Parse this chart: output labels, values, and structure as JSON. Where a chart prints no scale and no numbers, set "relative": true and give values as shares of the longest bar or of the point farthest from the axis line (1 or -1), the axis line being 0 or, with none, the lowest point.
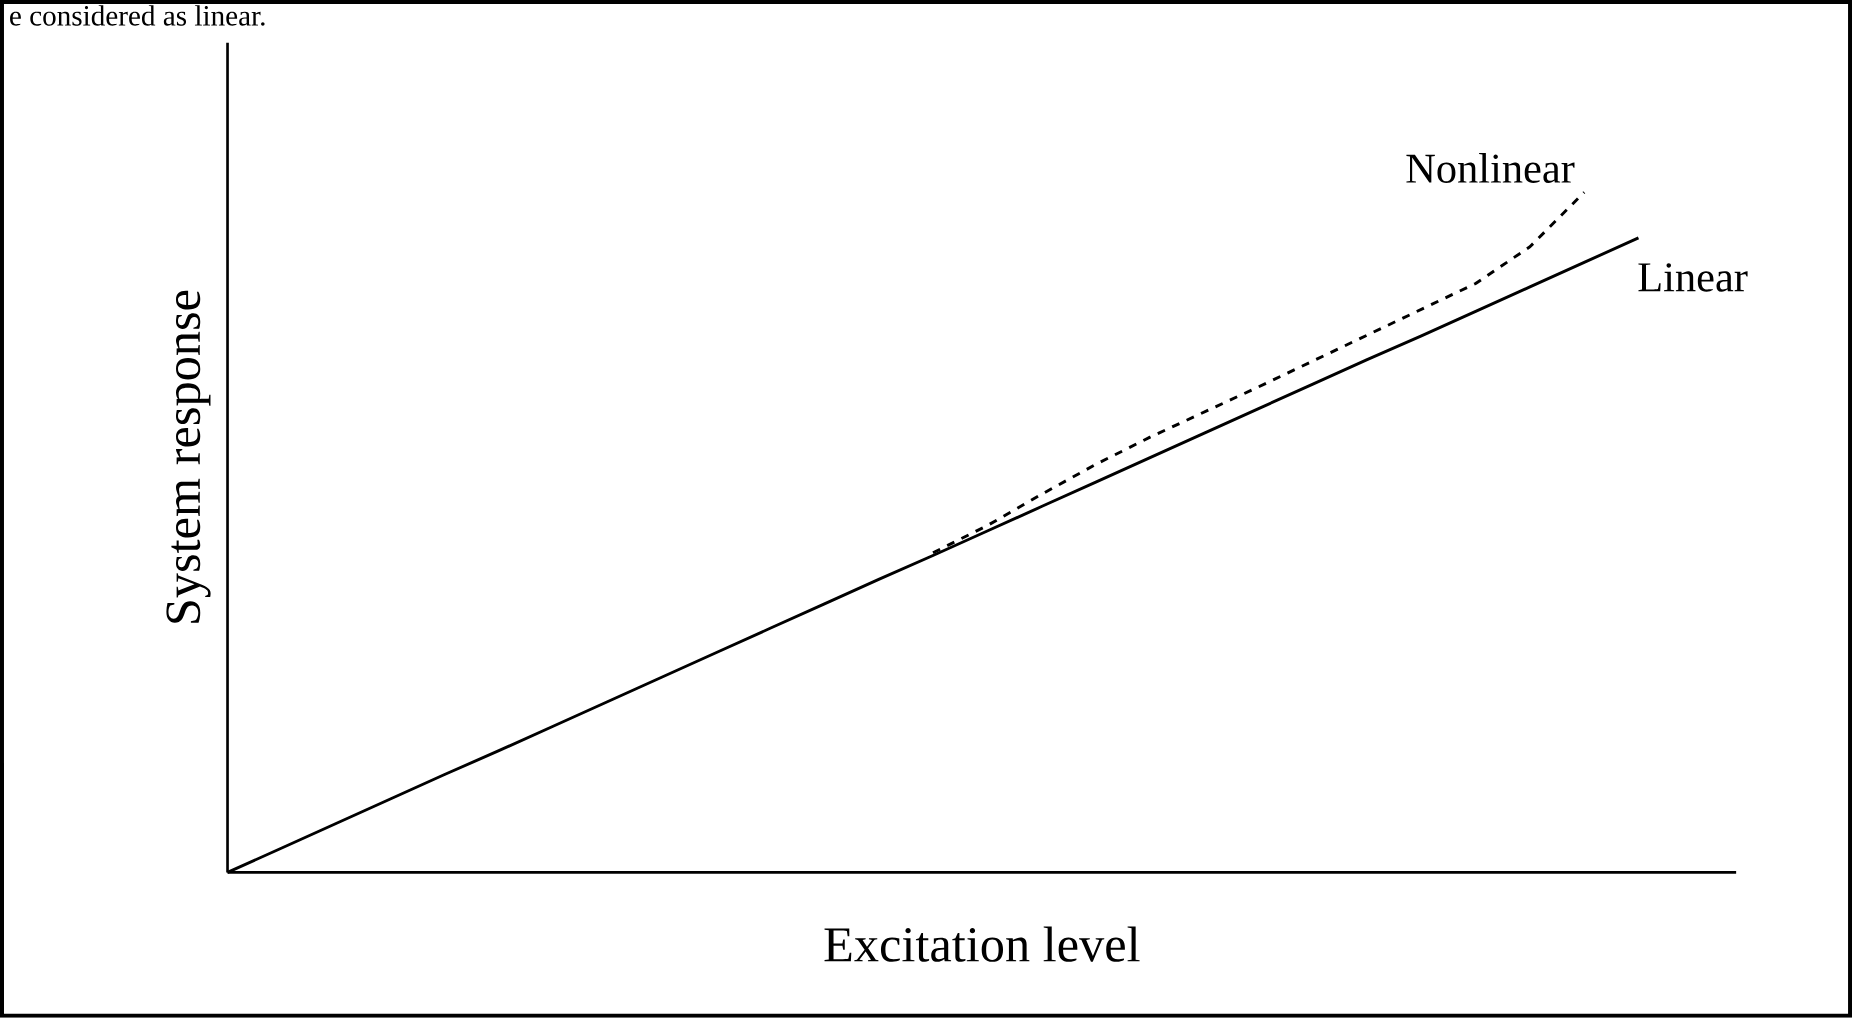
{
  "chart_data": {
    "type": "line",
    "relative": true,
    "xlabel": "Excitation level",
    "ylabel": "System response",
    "annotations": [
      "e considered as linear."
    ],
    "categories": [
      null,
      null,
      null,
      null,
      null,
      null,
      null,
      null,
      null,
      null,
      null,
      null,
      null,
      null,
      null,
      null,
      null,
      null,
      null,
      null,
      null,
      null,
      null,
      null,
      null,
      null,
      null
    ],
    "series": [
      {
        "name": "Linear",
        "color": "#000000",
        "line_style": "solid",
        "values": [
          0,
          0.036,
          0.072,
          0.108,
          0.144,
          0.179,
          0.215,
          0.251,
          0.287,
          0.323,
          0.359,
          0.395,
          0.431,
          0.466,
          0.502,
          0.538,
          0.574,
          0.61,
          0.646,
          0.682,
          0.718,
          0.754,
          0.789,
          0.825,
          0.861,
          0.897,
          0.933
        ]
      },
      {
        "name": "Nonlinear",
        "color": "#000000",
        "line_style": "dashed",
        "values": [
          null,
          null,
          null,
          null,
          null,
          null,
          null,
          null,
          null,
          null,
          null,
          null,
          null,
          0.47,
          0.51,
          0.556,
          0.6,
          0.64,
          0.677,
          0.714,
          0.752,
          0.79,
          0.828,
          0.866,
          0.92,
          1.0,
          null
        ]
      }
    ]
  }
}
